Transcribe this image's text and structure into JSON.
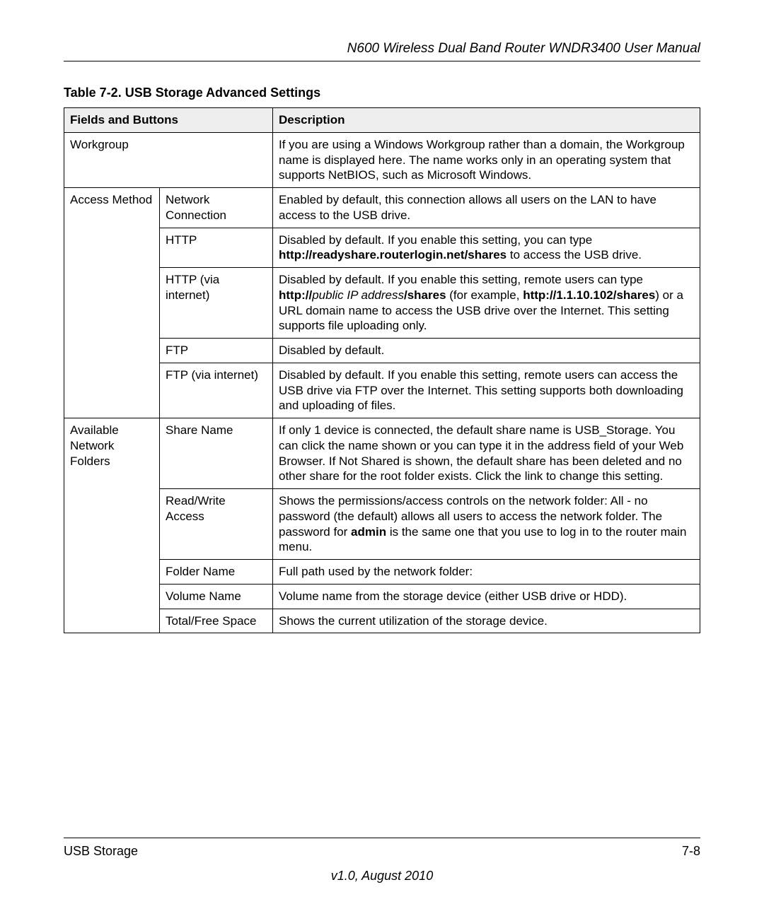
{
  "header": {
    "title": "N600 Wireless Dual Band Router WNDR3400 User Manual"
  },
  "table": {
    "caption": "Table 7-2.  USB Storage Advanced Settings",
    "headers": {
      "fields": "Fields and Buttons",
      "description": "Description"
    },
    "rows": {
      "workgroup": {
        "field": "Workgroup",
        "desc": "If you are using a Windows Workgroup rather than a domain, the Workgroup name is displayed here. The name works only in an operating system that supports NetBIOS, such as Microsoft Windows."
      },
      "access_method": {
        "field": "Access Method",
        "network_connection": {
          "sub": "Network Connection",
          "desc": "Enabled by default, this connection allows all users on the LAN to have access to the USB drive."
        },
        "http": {
          "sub": "HTTP",
          "desc_p1": "Disabled by default. If you enable this setting, you can type ",
          "desc_b1": "http://readyshare.routerlogin.net/shares",
          "desc_p2": " to access the USB drive."
        },
        "http_via_internet": {
          "sub": "HTTP (via internet)",
          "desc_p1": "Disabled by default. If you enable this setting, remote users can type ",
          "desc_b1": "http://",
          "desc_i1": "public IP address",
          "desc_b2": "/shares",
          "desc_p2": " (for example, ",
          "desc_b3": "http://1.1.10.102/shares",
          "desc_p3": ") or a URL domain name to access the USB drive over the Internet. This setting supports file uploading only."
        },
        "ftp": {
          "sub": "FTP",
          "desc": "Disabled by default."
        },
        "ftp_via_internet": {
          "sub": "FTP (via internet)",
          "desc": "Disabled by default. If you enable this setting, remote users can access the USB drive via FTP over the Internet. This setting supports both downloading and uploading of files."
        }
      },
      "available_network_folders": {
        "field": "Available Network Folders",
        "share_name": {
          "sub": "Share Name",
          "desc": "If only 1 device is connected, the default share name is USB_Storage. You can click the name shown or you can type it in the address field of your Web Browser. If Not Shared is shown, the default share has been deleted and no other share for the root folder exists. Click the link to change this setting."
        },
        "read_write_access": {
          "sub": "Read/Write Access",
          "desc_p1": "Shows the permissions/access controls on the network folder: All - no password (the default) allows all users to access the network folder. The password for ",
          "desc_b1": "admin",
          "desc_p2": " is the same one that you use to log in to the router main menu."
        },
        "folder_name": {
          "sub": "Folder Name",
          "desc": "Full path used by the network folder:"
        },
        "volume_name": {
          "sub": "Volume Name",
          "desc": "Volume name from the storage device (either USB drive or HDD)."
        },
        "total_free_space": {
          "sub": "Total/Free Space",
          "desc": "Shows the current utilization of the storage device."
        }
      }
    }
  },
  "footer": {
    "left": "USB Storage",
    "right": "7-8",
    "version": "v1.0, August 2010"
  }
}
